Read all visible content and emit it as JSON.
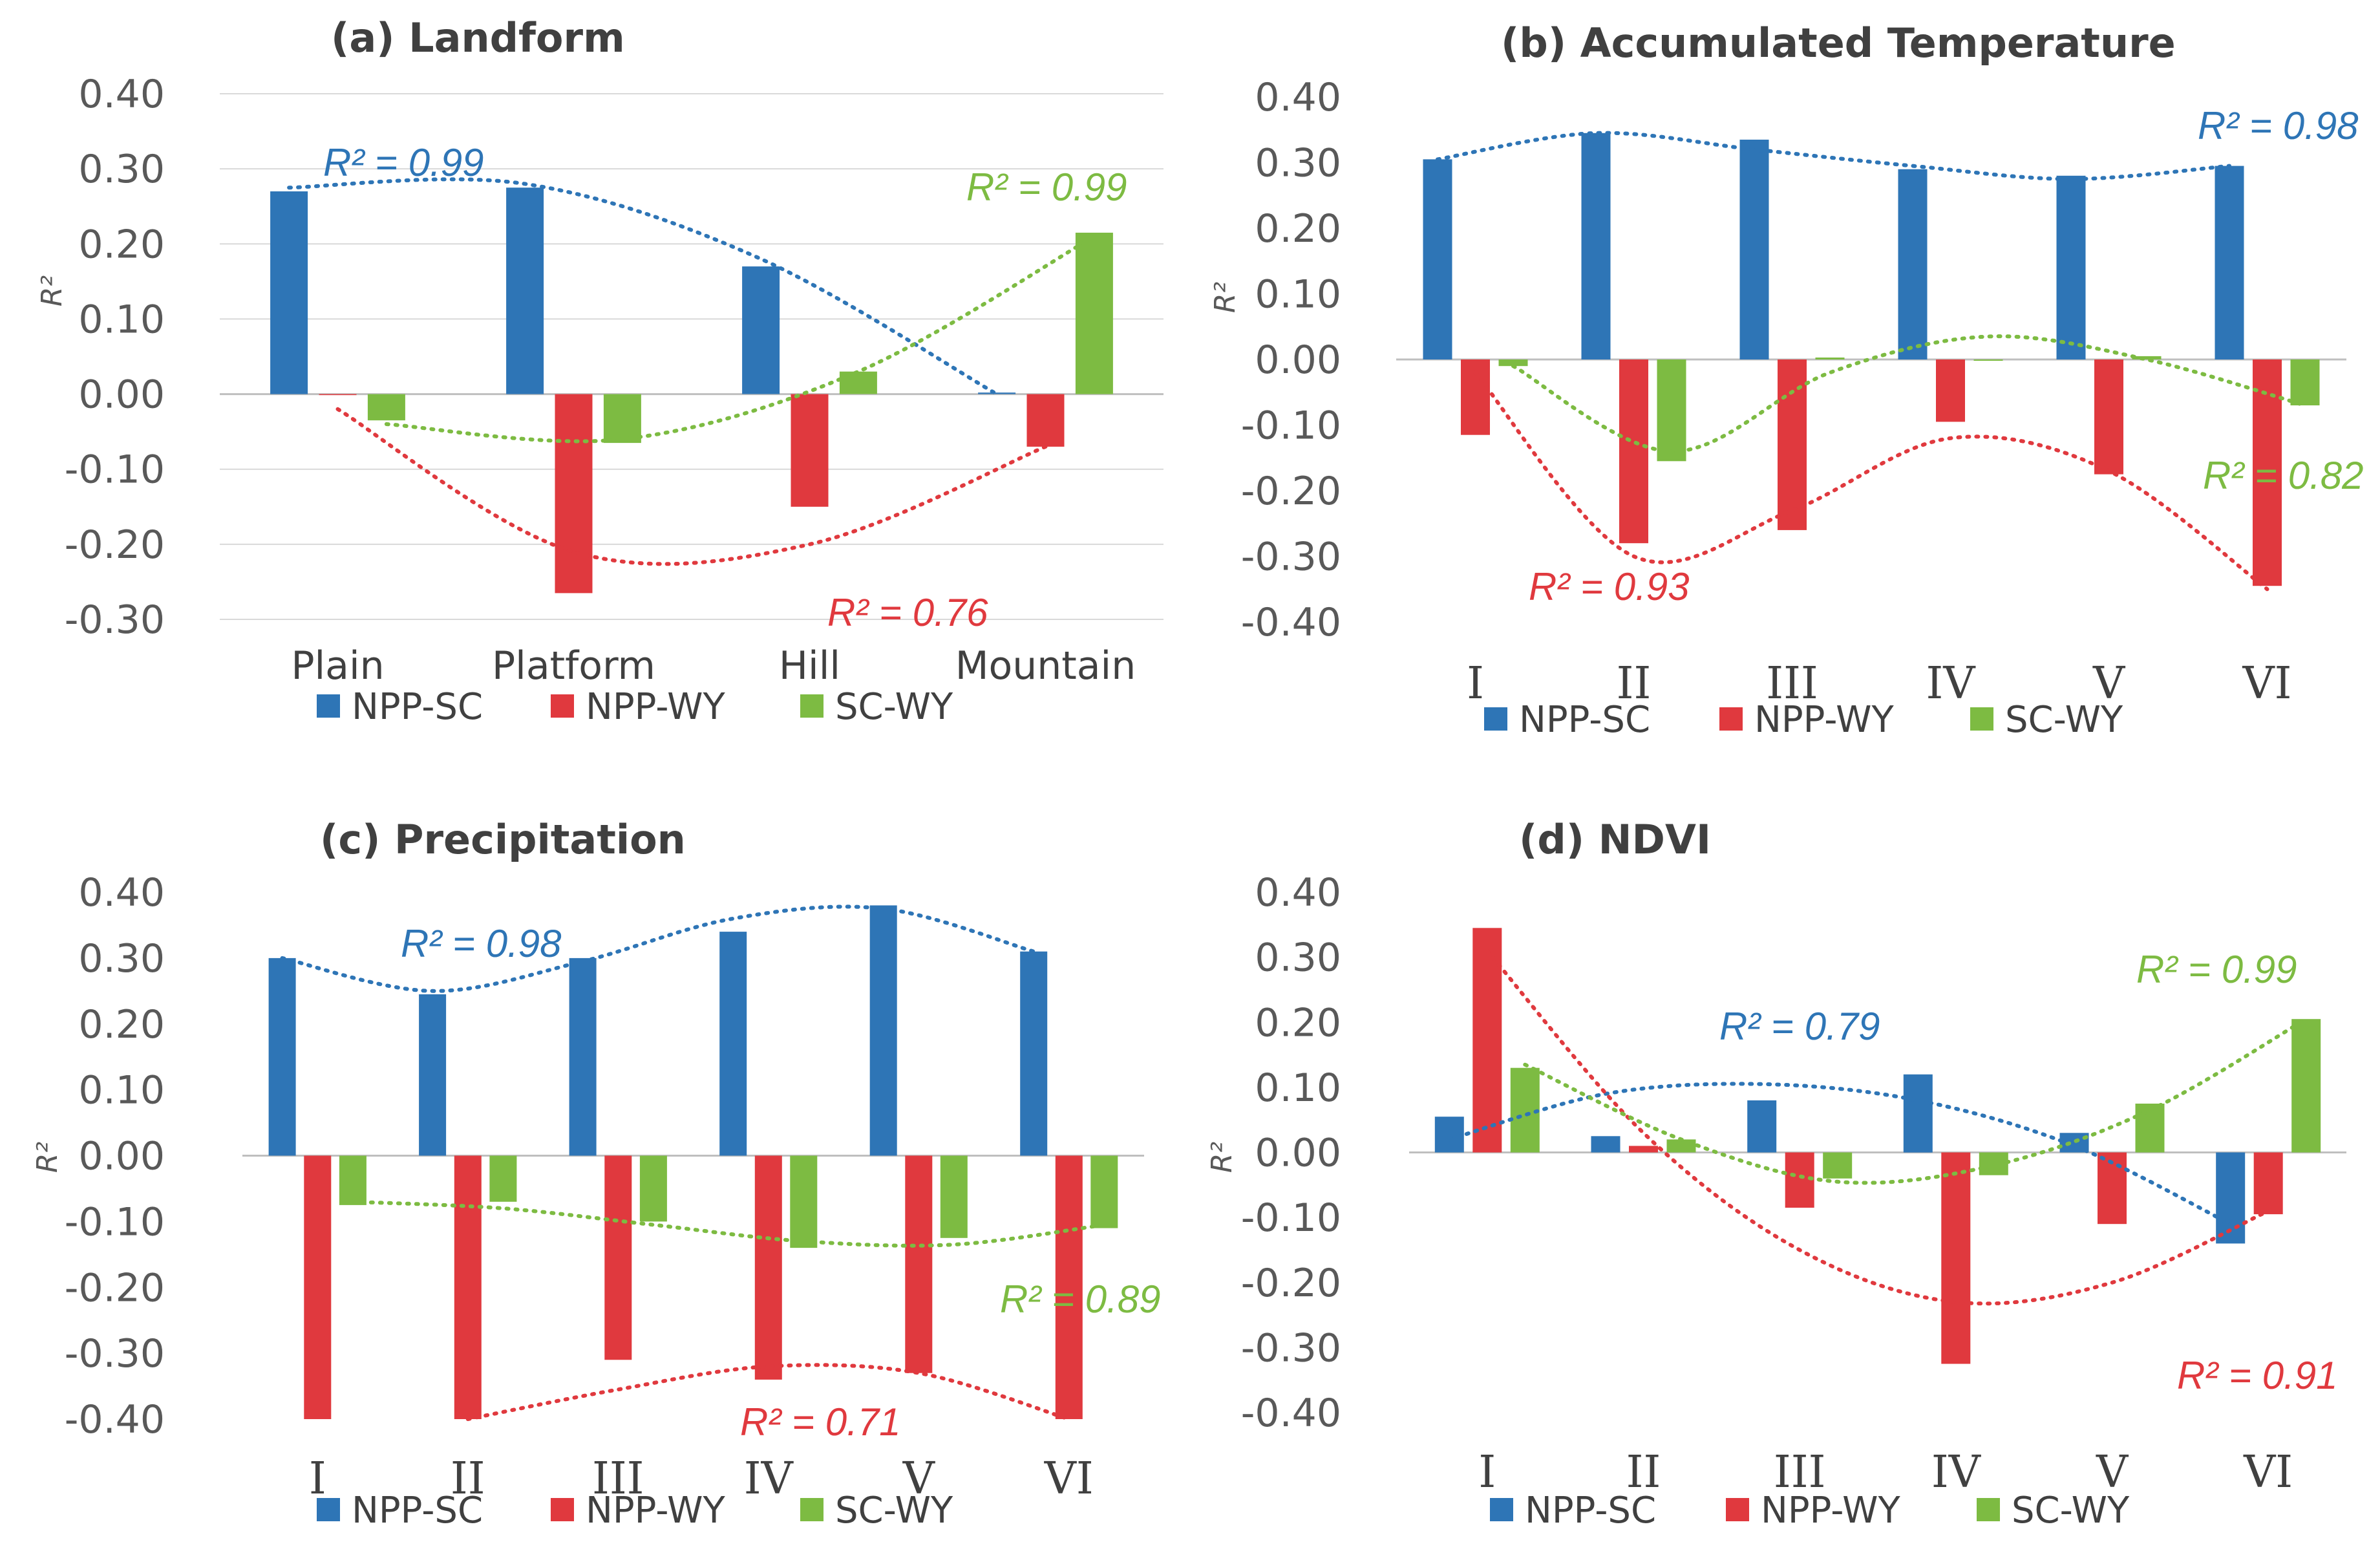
{
  "figure": {
    "colors": {
      "NPP-SC": "#2E75B6",
      "NPP-WY": "#E0393E",
      "SC-WY": "#7DBB42",
      "grid": "#D9D9D9",
      "axis": "#BFBFBF"
    }
  },
  "chart_data": [
    {
      "id": "a",
      "type": "bar",
      "title": "(a) Landform",
      "ylabel": "R²",
      "xlabel": "",
      "ylim": [
        -0.3,
        0.4
      ],
      "yticks": [
        0.4,
        0.3,
        0.2,
        0.1,
        0.0,
        -0.1,
        -0.2,
        -0.3
      ],
      "ytick_labels": [
        "0.40",
        "0.30",
        "0.20",
        "0.10",
        "0.00",
        "-0.10",
        "-0.20",
        "-0.30"
      ],
      "categories": [
        "Plain",
        "Platform",
        "Hill",
        "Mountain"
      ],
      "category_style": "text",
      "grid": true,
      "legend_position": "bottom",
      "series": [
        {
          "name": "NPP-SC",
          "values": [
            0.27,
            0.275,
            0.17,
            0.002
          ]
        },
        {
          "name": "NPP-WY",
          "values": [
            0.0,
            -0.265,
            -0.15,
            -0.07
          ]
        },
        {
          "name": "SC-WY",
          "values": [
            -0.035,
            -0.065,
            0.03,
            0.215
          ]
        }
      ],
      "trendlines": [
        {
          "series": "NPP-SC",
          "label": "R² = 0.99",
          "values": [
            0.275,
            0.28,
            0.18,
            0.0
          ]
        },
        {
          "series": "NPP-WY",
          "label": "R² = 0.76",
          "values": [
            -0.02,
            -0.21,
            -0.2,
            -0.07
          ]
        },
        {
          "series": "SC-WY",
          "label": "R² = 0.99",
          "values": [
            -0.04,
            -0.06,
            0.03,
            0.21
          ]
        }
      ]
    },
    {
      "id": "b",
      "type": "bar",
      "title": "(b) Accumulated Temperature",
      "ylabel": "R²",
      "xlabel": "",
      "ylim": [
        -0.4,
        0.4
      ],
      "yticks": [
        0.4,
        0.3,
        0.2,
        0.1,
        0.0,
        -0.1,
        -0.2,
        -0.3,
        -0.4
      ],
      "ytick_labels": [
        "0.40",
        "0.30",
        "0.20",
        "0.10",
        "0.00",
        "-0.10",
        "-0.20",
        "-0.30",
        "-0.40"
      ],
      "categories": [
        "I",
        "II",
        "III",
        "IV",
        "V",
        "VI"
      ],
      "category_style": "roman",
      "grid": false,
      "legend_position": "bottom",
      "series": [
        {
          "name": "NPP-SC",
          "values": [
            0.305,
            0.345,
            0.335,
            0.29,
            0.28,
            0.295
          ]
        },
        {
          "name": "NPP-WY",
          "values": [
            -0.115,
            -0.28,
            -0.26,
            -0.095,
            -0.175,
            -0.345
          ]
        },
        {
          "name": "SC-WY",
          "values": [
            -0.01,
            -0.155,
            0.003,
            -0.002,
            0.005,
            -0.07
          ]
        }
      ],
      "trendlines": [
        {
          "series": "NPP-SC",
          "label": "R² = 0.98",
          "values": [
            0.305,
            0.345,
            0.32,
            0.295,
            0.275,
            0.295
          ]
        },
        {
          "series": "NPP-WY",
          "label": "R² = 0.93",
          "values": [
            -0.02,
            -0.3,
            -0.23,
            -0.12,
            -0.17,
            -0.35
          ]
        },
        {
          "series": "SC-WY",
          "label": "R² = 0.82",
          "values": [
            -0.01,
            -0.14,
            -0.02,
            0.035,
            0.0,
            -0.07
          ]
        }
      ]
    },
    {
      "id": "c",
      "type": "bar",
      "title": "(c) Precipitation",
      "ylabel": "R²",
      "xlabel": "",
      "ylim": [
        -0.4,
        0.4
      ],
      "yticks": [
        0.4,
        0.3,
        0.2,
        0.1,
        0.0,
        -0.1,
        -0.2,
        -0.3,
        -0.4
      ],
      "ytick_labels": [
        "0.40",
        "0.30",
        "0.20",
        "0.10",
        "0.00",
        "-0.10",
        "-0.20",
        "-0.30",
        "-0.40"
      ],
      "categories": [
        "I",
        "II",
        "III",
        "IV",
        "V",
        "VI"
      ],
      "category_style": "roman",
      "grid": false,
      "legend_position": "bottom",
      "series": [
        {
          "name": "NPP-SC",
          "values": [
            0.3,
            0.245,
            0.3,
            0.34,
            0.38,
            0.31
          ]
        },
        {
          "name": "NPP-WY",
          "values": [
            -0.4,
            -0.4,
            -0.31,
            -0.34,
            -0.33,
            -0.4
          ]
        },
        {
          "name": "SC-WY",
          "values": [
            -0.075,
            -0.07,
            -0.1,
            -0.14,
            -0.125,
            -0.11
          ]
        }
      ],
      "trendlines": [
        {
          "series": "NPP-SC",
          "label": "R² = 0.98",
          "values": [
            0.3,
            0.25,
            0.295,
            0.36,
            0.375,
            0.31
          ]
        },
        {
          "series": "NPP-WY",
          "label": "R² = 0.71",
          "values": [
            null,
            -0.4,
            -0.355,
            -0.32,
            -0.33,
            -0.4
          ]
        },
        {
          "series": "SC-WY",
          "label": "R² = 0.89",
          "values": [
            -0.07,
            -0.08,
            -0.105,
            -0.13,
            -0.135,
            -0.105
          ]
        }
      ]
    },
    {
      "id": "d",
      "type": "bar",
      "title": "(d) NDVI",
      "ylabel": "R²",
      "xlabel": "",
      "ylim": [
        -0.4,
        0.4
      ],
      "yticks": [
        0.4,
        0.3,
        0.2,
        0.1,
        0.0,
        -0.1,
        -0.2,
        -0.3,
        -0.4
      ],
      "ytick_labels": [
        "0.40",
        "0.30",
        "0.20",
        "0.10",
        "0.00",
        "-0.10",
        "-0.20",
        "-0.30",
        "-0.40"
      ],
      "categories": [
        "I",
        "II",
        "III",
        "IV",
        "V",
        "VI"
      ],
      "category_style": "roman",
      "grid": false,
      "legend_position": "bottom",
      "series": [
        {
          "name": "NPP-SC",
          "values": [
            0.055,
            0.025,
            0.08,
            0.12,
            0.03,
            -0.14
          ]
        },
        {
          "name": "NPP-WY",
          "values": [
            0.345,
            0.01,
            -0.085,
            -0.325,
            -0.11,
            -0.095
          ]
        },
        {
          "name": "SC-WY",
          "values": [
            0.13,
            0.02,
            -0.04,
            -0.035,
            0.075,
            0.205
          ]
        }
      ],
      "trendlines": [
        {
          "series": "NPP-SC",
          "label": "R² = 0.79",
          "values": [
            0.02,
            0.09,
            0.105,
            0.08,
            0.01,
            -0.11
          ]
        },
        {
          "series": "NPP-WY",
          "label": "R² = 0.91",
          "values": [
            0.31,
            0.03,
            -0.15,
            -0.23,
            -0.2,
            -0.09
          ]
        },
        {
          "series": "SC-WY",
          "label": "R² = 0.99",
          "values": [
            0.135,
            0.02,
            -0.045,
            -0.02,
            0.065,
            0.205
          ]
        }
      ]
    }
  ]
}
